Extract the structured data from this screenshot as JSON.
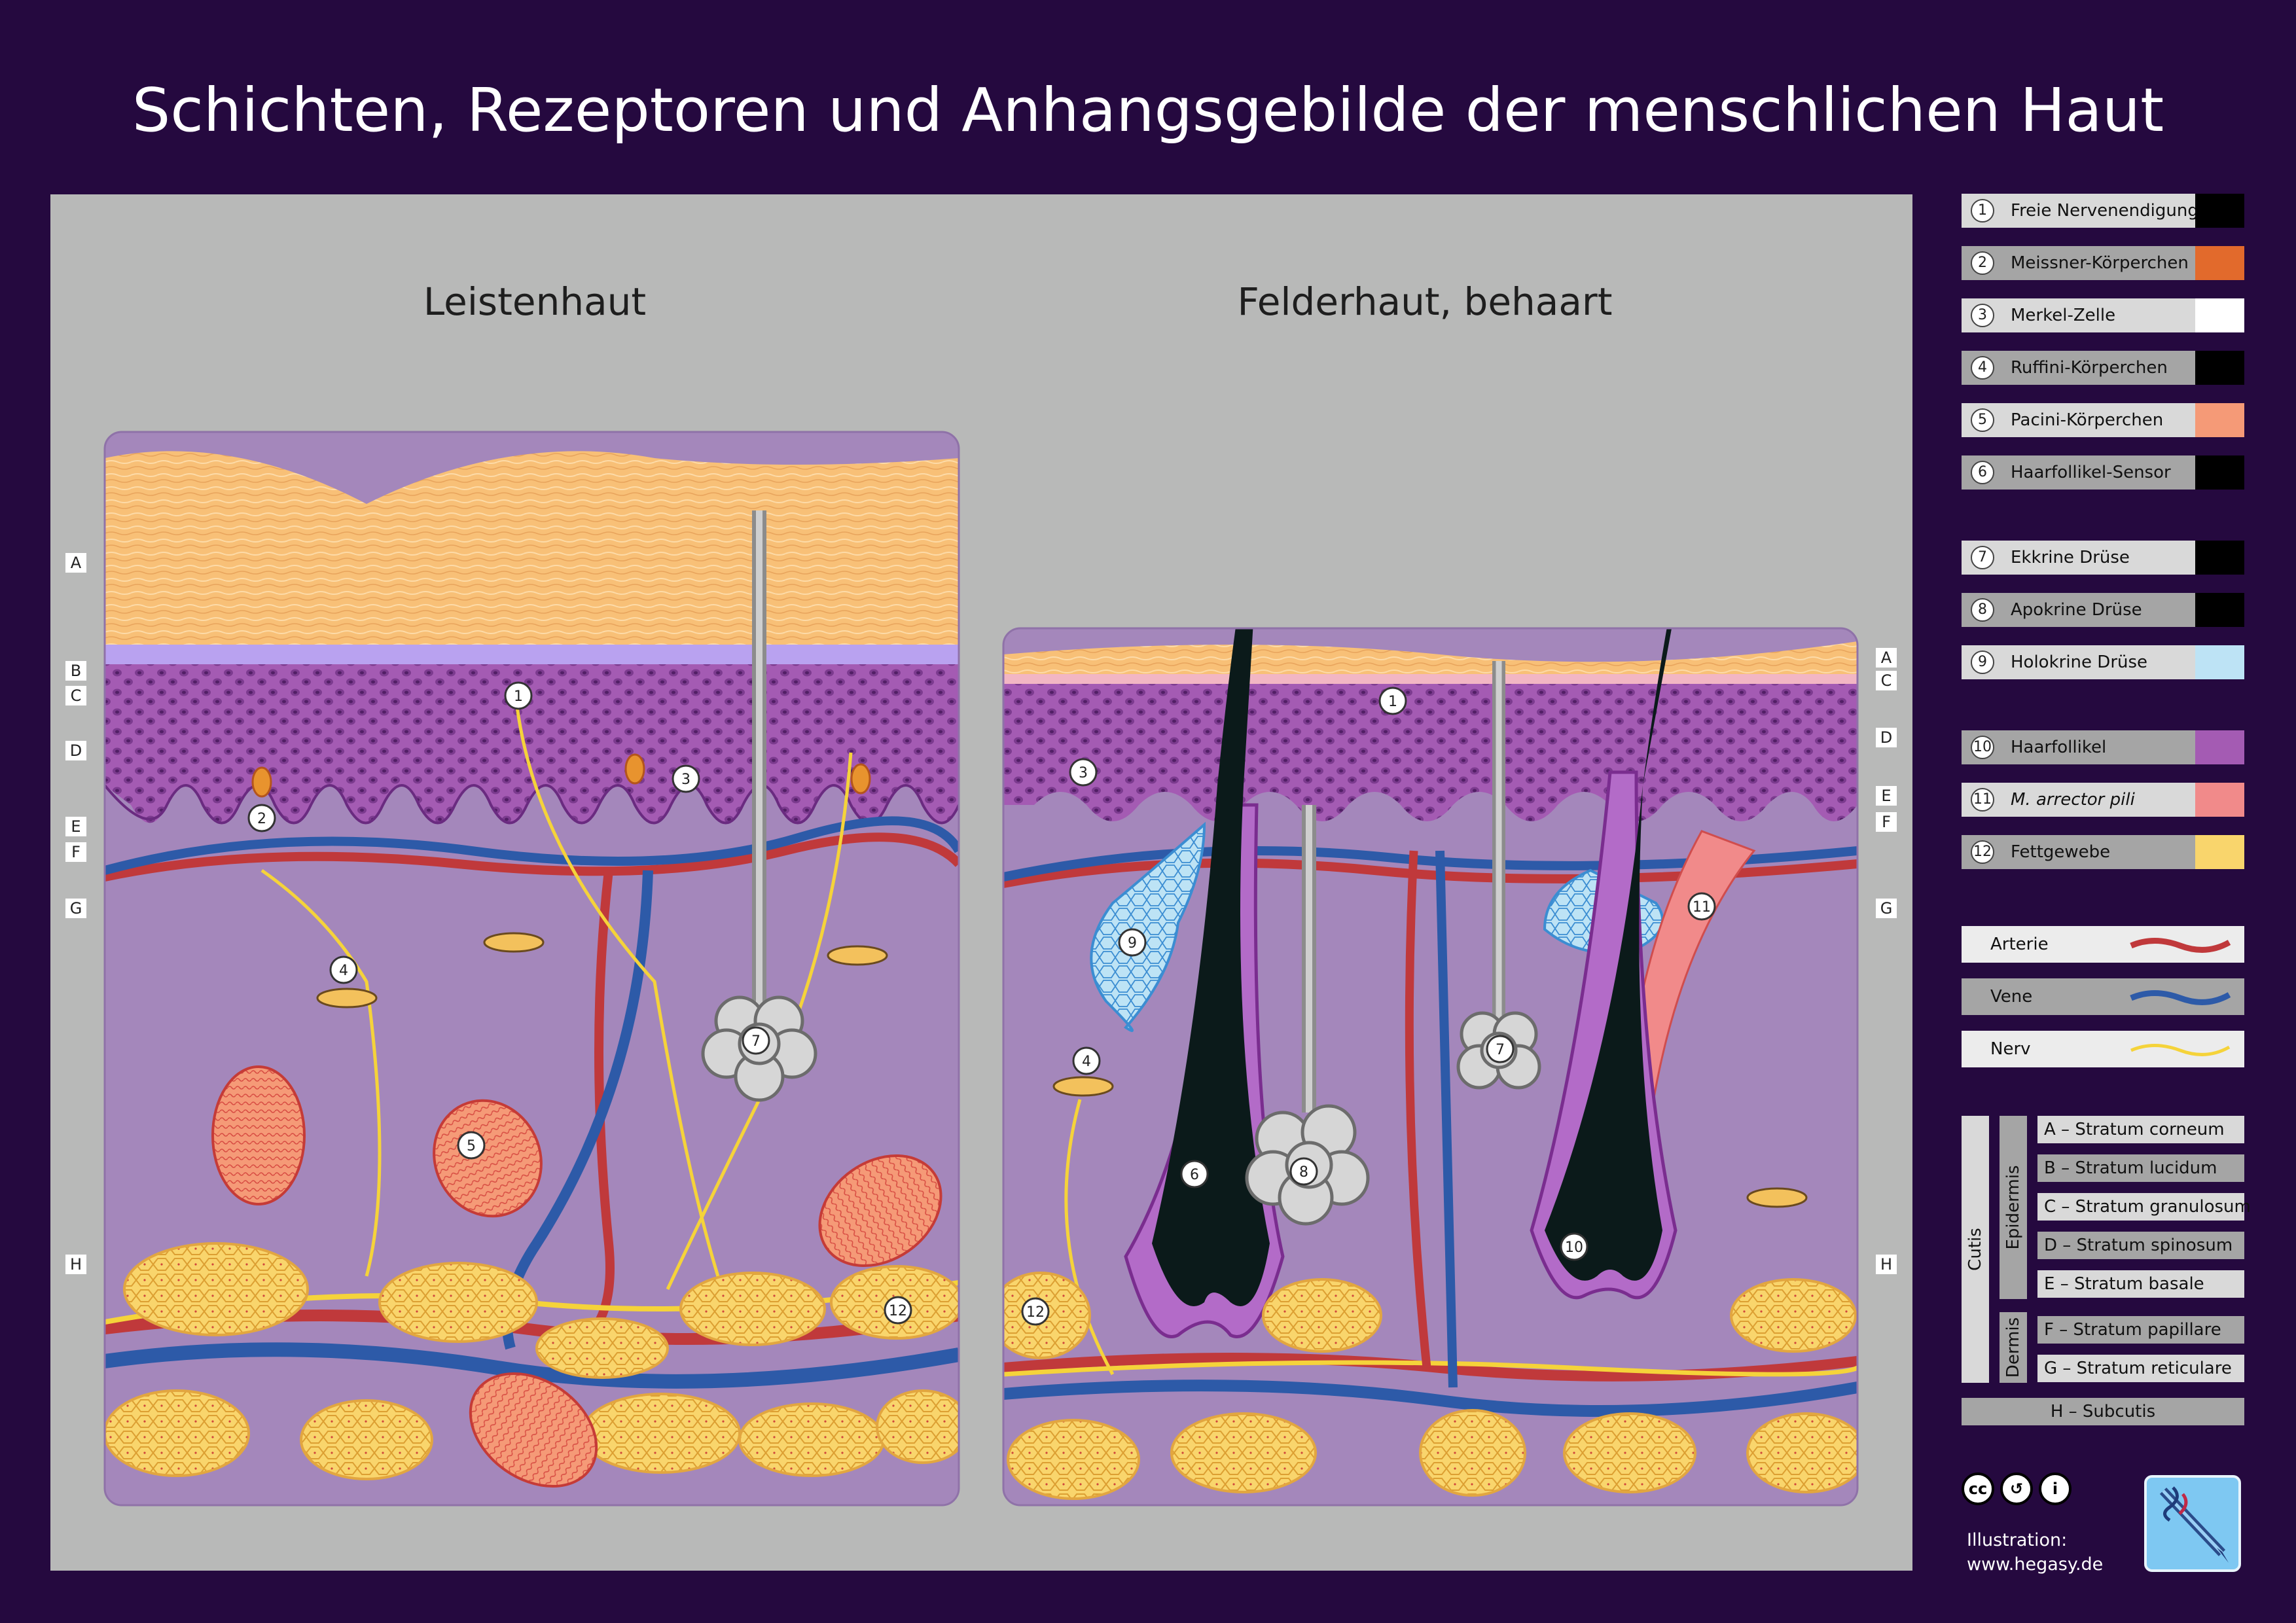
{
  "title": "Schichten, Rezeptoren und Anhangsgebilde der menschlichen Haut",
  "panels": {
    "left_title": "Leistenhaut",
    "right_title": "Felderhaut, behaart"
  },
  "layer_markers_left": [
    "A",
    "B",
    "C",
    "D",
    "E",
    "F",
    "G",
    "H"
  ],
  "layer_markers_right": [
    "A",
    "C",
    "D",
    "E",
    "F",
    "G",
    "H"
  ],
  "numbered_markers": [
    "1",
    "2",
    "3",
    "4",
    "5",
    "6",
    "7",
    "8",
    "9",
    "10",
    "11",
    "12"
  ],
  "legend_structures": [
    {
      "num": "1",
      "label": "Freie Nervenendigung"
    },
    {
      "num": "2",
      "label": "Meissner-Körperchen"
    },
    {
      "num": "3",
      "label": "Merkel-Zelle"
    },
    {
      "num": "4",
      "label": "Ruffini-Körperchen"
    },
    {
      "num": "5",
      "label": "Pacini-Körperchen"
    },
    {
      "num": "6",
      "label": "Haarfollikel-Sensor"
    },
    {
      "num": "7",
      "label": "Ekkrine Drüse"
    },
    {
      "num": "8",
      "label": "Apokrine Drüse"
    },
    {
      "num": "9",
      "label": "Holokrine Drüse"
    },
    {
      "num": "10",
      "label": "Haarfollikel"
    },
    {
      "num": "11",
      "label": "M. arrector pili"
    },
    {
      "num": "12",
      "label": "Fettgewebe"
    }
  ],
  "legend_lines": [
    {
      "label": "Arterie",
      "color": "#c0393b"
    },
    {
      "label": "Vene",
      "color": "#2d5aa8"
    },
    {
      "label": "Nerv",
      "color": "#f5d33a"
    }
  ],
  "layers": {
    "cutis_label": "Cutis",
    "epidermis_label": "Epidermis",
    "dermis_label": "Dermis",
    "epidermis_items": [
      "A – Stratum corneum",
      "B – Stratum lucidum",
      "C – Stratum granulosum",
      "D – Stratum spinosum",
      "E – Stratum basale"
    ],
    "dermis_items": [
      "F – Stratum papillare",
      "G – Stratum reticulare"
    ],
    "subcutis": "H – Subcutis"
  },
  "license_icons": [
    "cc",
    "by",
    "sa"
  ],
  "license_letters": [
    "cc",
    "↺",
    "i"
  ],
  "credit": {
    "line1": "Illustration:",
    "line2": "www.hegasy.de"
  },
  "colors": {
    "background": "#25093f",
    "panel": "#b8b9b8",
    "corneum": "#f7c07d",
    "epidermis": "#a45bb3",
    "dermis": "#a487bb",
    "artery": "#c0393b",
    "vein": "#2d5aa8",
    "nerve": "#f5d33a",
    "fat": "#f9d56c"
  }
}
